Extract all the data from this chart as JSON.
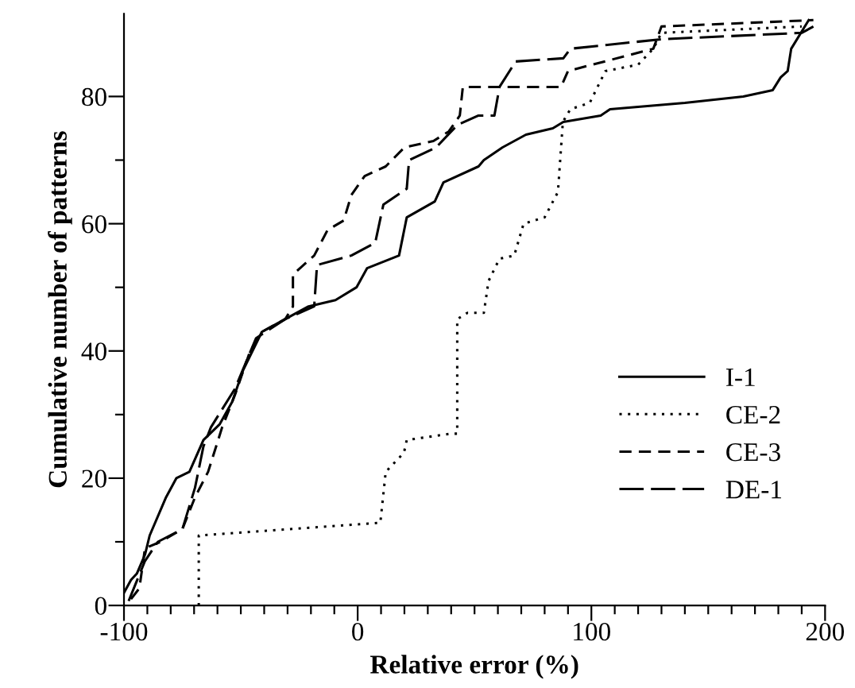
{
  "chart_data": {
    "type": "line",
    "xlabel": "Relative error (%)",
    "ylabel": "Cumulative number of patterns",
    "xlim": [
      -100,
      200
    ],
    "ylim": [
      0,
      93
    ],
    "xticks": [
      -100,
      {
        "value": -90,
        "label": null
      },
      {
        "value": -80,
        "label": null
      },
      {
        "value": -70,
        "label": null
      },
      {
        "value": -60,
        "label": null
      },
      {
        "value": -50,
        "label": null
      },
      {
        "value": -40,
        "label": null
      },
      {
        "value": -30,
        "label": null
      },
      {
        "value": -20,
        "label": null
      },
      {
        "value": -10,
        "label": null
      },
      0,
      {
        "value": 10,
        "label": null
      },
      {
        "value": 20,
        "label": null
      },
      {
        "value": 30,
        "label": null
      },
      {
        "value": 40,
        "label": null
      },
      {
        "value": 50,
        "label": null
      },
      {
        "value": 60,
        "label": null
      },
      {
        "value": 70,
        "label": null
      },
      {
        "value": 80,
        "label": null
      },
      {
        "value": 90,
        "label": null
      },
      100,
      {
        "value": 110,
        "label": null
      },
      {
        "value": 120,
        "label": null
      },
      {
        "value": 130,
        "label": null
      },
      {
        "value": 140,
        "label": null
      },
      {
        "value": 150,
        "label": null
      },
      {
        "value": 160,
        "label": null
      },
      {
        "value": 170,
        "label": null
      },
      {
        "value": 180,
        "label": null
      },
      {
        "value": 190,
        "label": null
      },
      200
    ],
    "yticks": [
      0,
      {
        "value": 10,
        "label": null
      },
      20,
      {
        "value": 30,
        "label": null
      },
      40,
      {
        "value": 50,
        "label": null
      },
      60,
      {
        "value": 70,
        "label": null
      },
      80
    ],
    "grid": false,
    "legend": "lower right",
    "marker": "none",
    "series": [
      {
        "name": "I-1",
        "color": "#000000",
        "line_style": "solid",
        "x": [
          -100,
          -97,
          -94.5,
          -91,
          -89,
          -82,
          -77.6,
          -72,
          -66,
          -59,
          -53.7,
          -49,
          -41,
          -31,
          -21,
          -9.5,
          -0.5,
          4,
          17.7,
          21,
          33,
          36.7,
          51.7,
          54,
          62,
          72,
          83.5,
          88,
          104,
          108,
          140,
          165,
          177.6,
          181,
          184,
          185.5,
          193
        ],
        "values": [
          2,
          4,
          5,
          8,
          11,
          17,
          20,
          21,
          26,
          28.5,
          32,
          37,
          43,
          45,
          47,
          48,
          50,
          53,
          55,
          61,
          63.5,
          66.5,
          69,
          70,
          72,
          74,
          75,
          76,
          77,
          78,
          79,
          80,
          81,
          83,
          84,
          87.5,
          92
        ]
      },
      {
        "name": "CE-2",
        "color": "#000000",
        "line_style": "dotted",
        "x": [
          -68,
          -68,
          9.7,
          12,
          19.8,
          21,
          40,
          42.6,
          42.6,
          47,
          54,
          56,
          60.7,
          67,
          71,
          80,
          85.7,
          87.8,
          91,
          99.3,
          106,
          120,
          126.5,
          130,
          190
        ],
        "values": [
          0,
          11,
          13,
          21,
          24,
          26,
          27,
          27,
          45,
          46,
          46,
          51,
          54.5,
          55,
          60,
          61,
          65,
          76,
          78,
          79,
          84,
          85,
          87.5,
          90,
          91
        ]
      },
      {
        "name": "CE-3",
        "color": "#000000",
        "line_style": "dashed",
        "x": [
          -97,
          -93.4,
          -91,
          -84.4,
          -75,
          -69.6,
          -64,
          -59.7,
          -58,
          -52.6,
          -46,
          -41,
          -31,
          -27.7,
          -27.7,
          -18.6,
          -12.9,
          -6,
          -2.7,
          3,
          12,
          20,
          32.4,
          39,
          43.7,
          45,
          87,
          90,
          126.5,
          130,
          195
        ],
        "values": [
          1,
          2.7,
          9,
          10,
          12,
          17,
          21,
          26,
          28,
          33,
          40,
          43,
          45,
          47,
          52,
          55,
          59,
          60.5,
          64.5,
          67.5,
          69,
          72,
          73,
          74.5,
          77,
          81.5,
          81.5,
          84,
          87.5,
          91,
          92
        ]
      },
      {
        "name": "DE-1",
        "color": "#000000",
        "line_style": "long dashed",
        "x": [
          -98,
          -91,
          -85.5,
          -75,
          -69.6,
          -66,
          -62.8,
          -52.6,
          -43.5,
          -31,
          -18.6,
          -17.4,
          -2.7,
          7.5,
          11,
          21,
          22,
          33.6,
          42.6,
          51.7,
          58.5,
          60.7,
          67.6,
          88,
          91,
          130,
          190,
          195
        ],
        "values": [
          0.7,
          7,
          10,
          12,
          18.5,
          25,
          28,
          34,
          42,
          45,
          47,
          53.5,
          55,
          57,
          63,
          65.5,
          70,
          72,
          75.5,
          77,
          77,
          81.5,
          85.5,
          86,
          87.5,
          89,
          90,
          91
        ]
      }
    ]
  }
}
